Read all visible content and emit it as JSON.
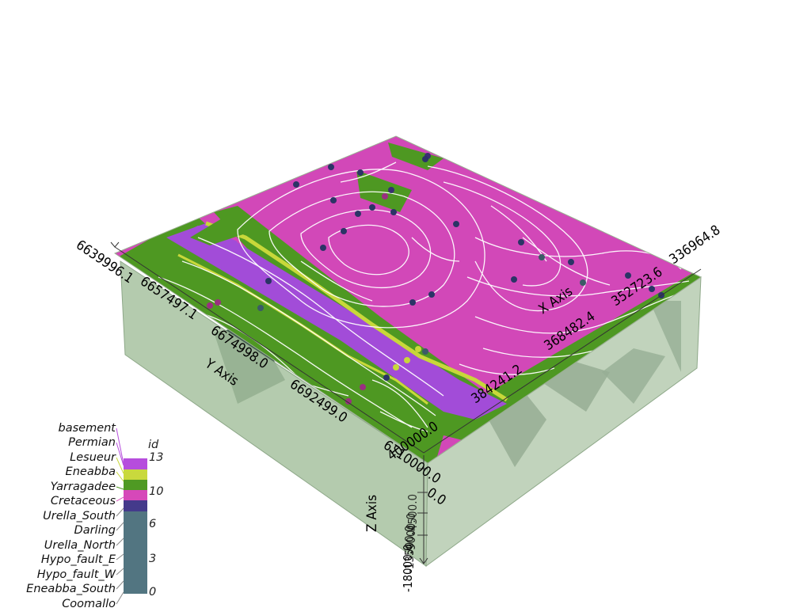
{
  "scene": {
    "x_axis": {
      "title": "X Axis",
      "ticks": [
        "336964.8",
        "352723.6",
        "368482.4",
        "384241.2",
        "400000.0"
      ]
    },
    "y_axis": {
      "title": "Y Axis",
      "ticks": [
        "6639996.1",
        "6657497.1",
        "6674998.0",
        "6692499.0",
        "6710000.0"
      ]
    },
    "z_axis": {
      "title": "Z Axis",
      "ticks": [
        "-18000.0",
        "-13500.0",
        "-9000.0",
        "-4500.0",
        "0.0"
      ]
    },
    "colors": {
      "magenta": "#d248b8",
      "purple": "#a24cd8",
      "green": "#4e9822",
      "yellow": "#c8d83a",
      "box": "#a7c2a0"
    }
  },
  "legend": {
    "title": "id",
    "units": [
      "basement",
      "Permian",
      "Lesueur",
      "Eneabba",
      "Yarragadee",
      "Cretaceous",
      "Urella_South",
      "Darling",
      "Urella_North",
      "Hypo_fault_E",
      "Hypo_fault_W",
      "Eneabba_South",
      "Coomallo"
    ],
    "tick_labels": [
      "13",
      "10",
      "6",
      "3",
      "0"
    ],
    "bands": [
      {
        "color": "#b64ddd"
      },
      {
        "color": "#c9d93d"
      },
      {
        "color": "#4f9a23"
      },
      {
        "color": "#d648b9"
      },
      {
        "color": "#443a8b"
      },
      {
        "color": "#527581"
      }
    ]
  }
}
